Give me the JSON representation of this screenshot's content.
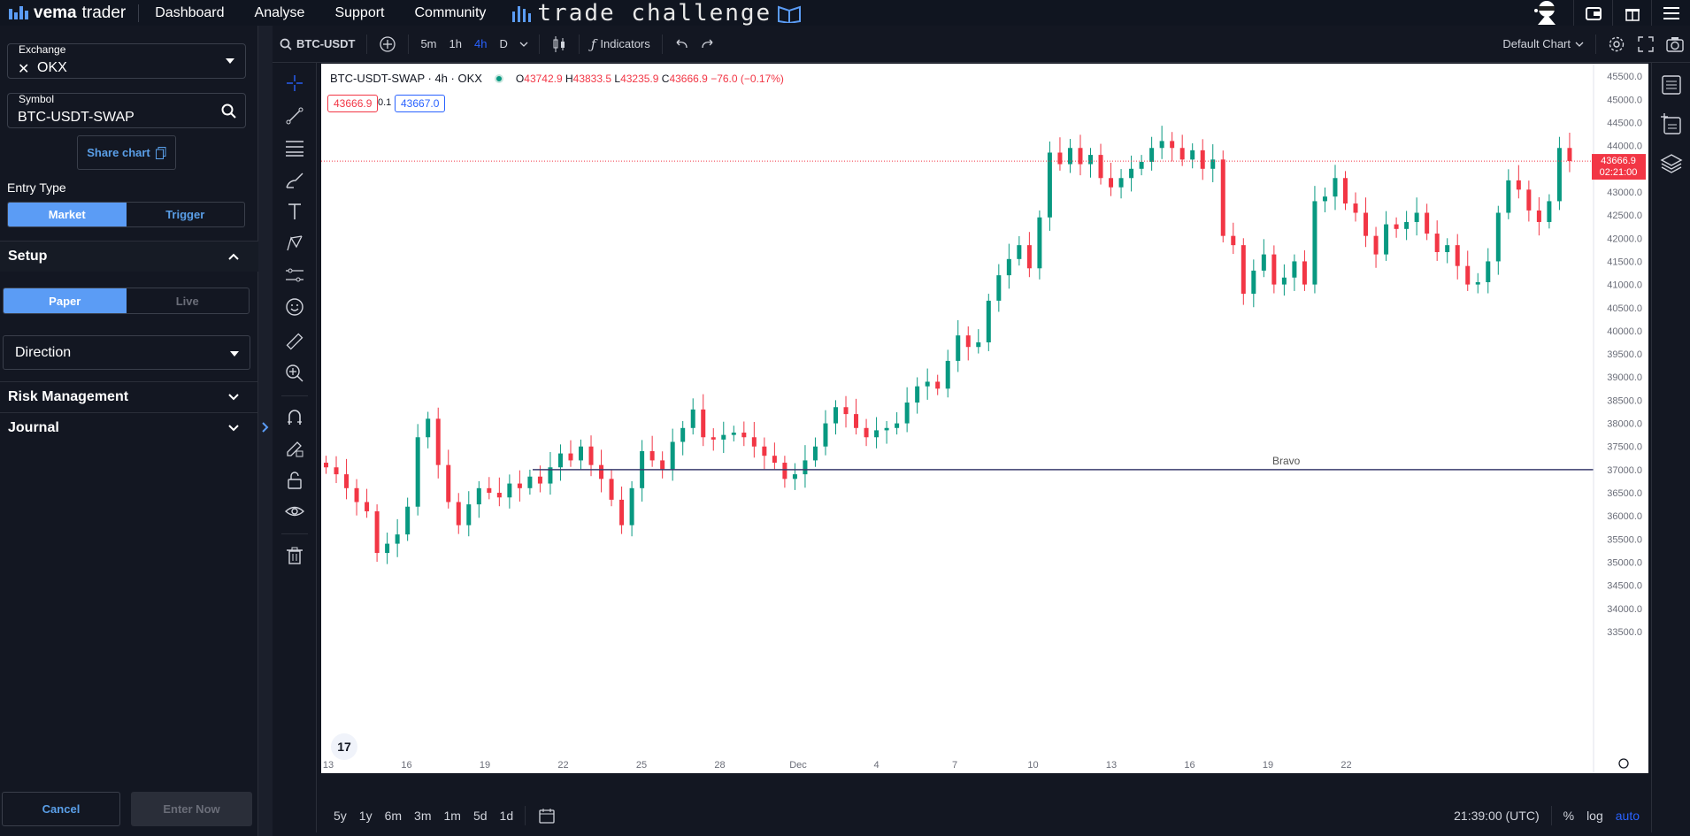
{
  "nav": {
    "brand_bold": "vema",
    "brand_rest": "trader",
    "links": [
      "Dashboard",
      "Analyse",
      "Support",
      "Community"
    ],
    "challenge_logo": "trade challenge"
  },
  "sidebar": {
    "exchange_label": "Exchange",
    "exchange_value": "OKX",
    "symbol_label": "Symbol",
    "symbol_value": "BTC-USDT-SWAP",
    "share_label": "Share chart",
    "entry_type_label": "Entry Type",
    "entry_types": [
      "Market",
      "Trigger"
    ],
    "setup_label": "Setup",
    "modes": [
      "Paper",
      "Live"
    ],
    "direction_placeholder": "Direction",
    "risk_label": "Risk Management",
    "journal_label": "Journal",
    "cancel_label": "Cancel",
    "enter_label": "Enter Now"
  },
  "toolbar": {
    "symbol": "BTC-USDT",
    "intervals": [
      "5m",
      "1h",
      "4h",
      "D"
    ],
    "active_interval": "4h",
    "indicators_label": "Indicators",
    "layout_label": "Default Chart"
  },
  "legend": {
    "title": "BTC-USDT-SWAP · 4h · OKX",
    "open": "43742.9",
    "high": "43833.5",
    "low": "43235.9",
    "close": "43666.9",
    "change": "−76.0 (−0.17%)",
    "bid": "43666.9",
    "spread": "0.1",
    "ask": "43667.0"
  },
  "price_tag": {
    "price": "43666.9",
    "countdown": "02:21:00"
  },
  "horizontal_line_label": "Bravo",
  "bottom": {
    "ranges": [
      "5y",
      "1y",
      "6m",
      "3m",
      "1m",
      "5d",
      "1d"
    ],
    "time": "21:39:00 (UTC)",
    "pct": "%",
    "log": "log",
    "auto": "auto"
  },
  "colors": {
    "up": "#089981",
    "down": "#f23645",
    "accent": "#2962ff",
    "brand": "#5b9cf5"
  },
  "chart_data": {
    "type": "candlestick",
    "interval": "4h",
    "ylim": [
      33500,
      46000
    ],
    "y_ticks": [
      33500,
      34000,
      34500,
      35000,
      35500,
      36000,
      36500,
      37000,
      37500,
      38000,
      38500,
      39000,
      39500,
      40000,
      40500,
      41000,
      41500,
      42000,
      42500,
      43000,
      43500,
      44000,
      44500,
      45000,
      45500
    ],
    "x_ticks": [
      "13",
      "16",
      "19",
      "22",
      "25",
      "28",
      "Dec",
      "4",
      "7",
      "10",
      "13",
      "16",
      "19",
      "22"
    ],
    "horizontal_lines": [
      {
        "label": "Bravo",
        "price": 37000
      }
    ],
    "last_price": 43666.9,
    "closes": [
      37050,
      36900,
      36600,
      36300,
      36100,
      35200,
      35400,
      35600,
      36200,
      37700,
      38100,
      37100,
      36300,
      35800,
      36250,
      36600,
      36500,
      36400,
      36700,
      36600,
      36850,
      36700,
      37050,
      37350,
      37200,
      37500,
      37100,
      36800,
      36350,
      35800,
      36600,
      37400,
      37200,
      37000,
      37600,
      37900,
      38300,
      37700,
      37650,
      37750,
      37800,
      37700,
      37500,
      37300,
      37150,
      36800,
      36900,
      37200,
      37500,
      38000,
      38350,
      38200,
      37900,
      37700,
      37850,
      37900,
      38000,
      38450,
      38800,
      38900,
      38750,
      39350,
      39900,
      39650,
      39750,
      40650,
      41200,
      41550,
      41850,
      41350,
      42450,
      43850,
      43600,
      43950,
      43600,
      43800,
      43300,
      43100,
      43300,
      43500,
      43650,
      43950,
      44100,
      43950,
      43700,
      43900,
      43500,
      43700,
      42050,
      41850,
      40800,
      41300,
      41650,
      41000,
      41150,
      41500,
      41000,
      42800,
      42900,
      43300,
      42750,
      42550,
      42050,
      41650,
      42300,
      42200,
      42350,
      42550,
      42100,
      41700,
      41850,
      41400,
      41000,
      41050,
      41500,
      42550,
      43250,
      43050,
      42600,
      42350,
      42800,
      43950,
      43666.9
    ]
  }
}
